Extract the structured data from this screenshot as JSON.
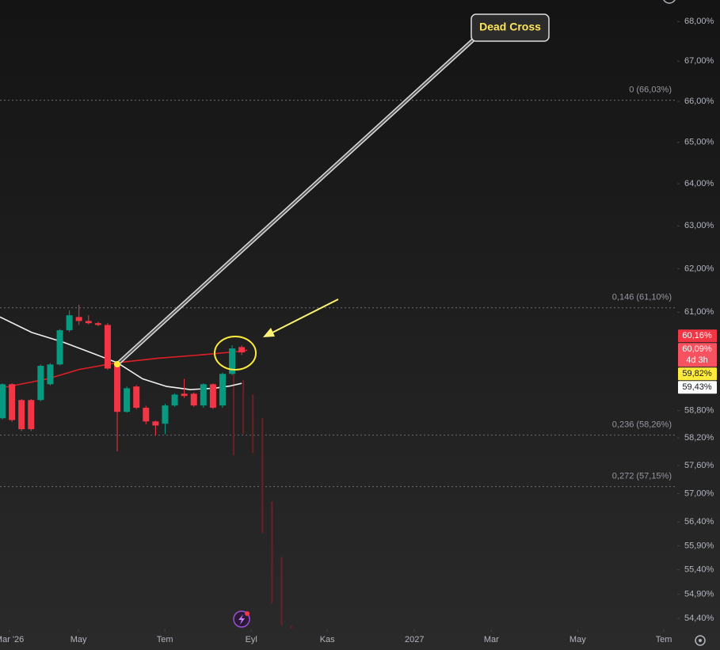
{
  "chart_data": {
    "type": "candlestick",
    "log_scale": true,
    "ylim": [
      54.18,
      68.55
    ],
    "yticks": [
      {
        "value": 68,
        "label": "68,00%"
      },
      {
        "value": 67,
        "label": "67,00%"
      },
      {
        "value": 66,
        "label": "66,00%"
      },
      {
        "value": 65,
        "label": "65,00%"
      },
      {
        "value": 64,
        "label": "64,00%"
      },
      {
        "value": 63,
        "label": "63,00%"
      },
      {
        "value": 62,
        "label": "62,00%"
      },
      {
        "value": 61,
        "label": "61,00%"
      },
      {
        "value": 58.8,
        "label": "58,80%"
      },
      {
        "value": 58.2,
        "label": "58,20%"
      },
      {
        "value": 57.6,
        "label": "57,60%"
      },
      {
        "value": 57,
        "label": "57,00%"
      },
      {
        "value": 56.4,
        "label": "56,40%"
      },
      {
        "value": 55.9,
        "label": "55,90%"
      },
      {
        "value": 55.4,
        "label": "55,40%"
      },
      {
        "value": 54.9,
        "label": "54,90%"
      },
      {
        "value": 54.4,
        "label": "54,40%"
      }
    ],
    "xlim": [
      -0.25,
      70.5
    ],
    "xticks": [
      {
        "value": 0.75,
        "label": "Mar '26"
      },
      {
        "value": 7.95,
        "label": "May"
      },
      {
        "value": 16.97,
        "label": "Tem"
      },
      {
        "value": 26.0,
        "label": "Eyl"
      },
      {
        "value": 33.94,
        "label": "Kas"
      },
      {
        "value": 43.05,
        "label": "2027"
      },
      {
        "value": 51.08,
        "label": "Mar"
      },
      {
        "value": 60.1,
        "label": "May"
      },
      {
        "value": 69.1,
        "label": "Tem"
      }
    ],
    "candles": {
      "up_color": "#089981",
      "down_color": "#f23645",
      "x": [
        0,
        1,
        2,
        3,
        4,
        5,
        6,
        7,
        8,
        9,
        10,
        11,
        12,
        13,
        14,
        15,
        16,
        17,
        18,
        19,
        20,
        21,
        22,
        23,
        24,
        25
      ],
      "open": [
        58.63,
        59.38,
        59.03,
        59.03,
        59.03,
        59.38,
        59.82,
        60.59,
        60.89,
        60.8,
        60.75,
        60.71,
        59.82,
        58.77,
        59.33,
        58.86,
        58.56,
        58.51,
        58.91,
        59.17,
        59.17,
        58.91,
        59.38,
        58.91,
        59.61,
        60.21
      ],
      "high": [
        59.4,
        59.4,
        59.05,
        59.05,
        59.82,
        59.85,
        60.62,
        61.04,
        61.17,
        60.93,
        60.78,
        60.75,
        59.85,
        59.33,
        59.36,
        58.9,
        58.58,
        58.95,
        59.18,
        59.5,
        59.2,
        59.4,
        59.4,
        59.64,
        60.25,
        60.25
      ],
      "low": [
        58.6,
        58.55,
        58.35,
        58.35,
        59.0,
        59.35,
        59.8,
        60.55,
        60.71,
        60.72,
        60.68,
        59.7,
        57.91,
        58.75,
        58.83,
        58.5,
        58.25,
        58.28,
        58.88,
        59.08,
        58.88,
        58.86,
        58.83,
        58.86,
        59.58,
        60.03
      ],
      "close": [
        59.38,
        58.59,
        58.39,
        58.39,
        59.79,
        59.82,
        60.59,
        60.93,
        60.8,
        60.75,
        60.71,
        59.73,
        58.77,
        59.29,
        58.86,
        58.56,
        58.47,
        58.91,
        59.15,
        59.12,
        58.91,
        59.38,
        58.86,
        59.61,
        60.18,
        60.09
      ]
    },
    "ghost": {
      "color": "#6e1f24",
      "x": [
        24,
        25,
        26,
        27,
        28,
        29,
        30
      ],
      "high": [
        59.64,
        59.47,
        59.15,
        58.63,
        56.84,
        55.67,
        54.26
      ],
      "low": [
        57.82,
        58.28,
        57.87,
        56.17,
        54.71,
        54.26,
        54.2
      ]
    },
    "lines": [
      {
        "color": "#f0f0f0",
        "x": [
          -0.25,
          3.06,
          6.37,
          9.69,
          12.0,
          14.65,
          17.14,
          19.62,
          22.1,
          23.76,
          25.0
        ],
        "values": [
          60.89,
          60.54,
          60.32,
          60.05,
          59.86,
          59.5,
          59.33,
          59.26,
          59.29,
          59.34,
          59.4
        ]
      },
      {
        "color": "#e01e26",
        "x": [
          -0.25,
          4.72,
          8.03,
          12.0,
          16.31,
          20.45,
          24.59,
          25.58
        ],
        "values": [
          59.29,
          59.5,
          59.71,
          59.86,
          59.96,
          60.03,
          60.11,
          60.14
        ]
      }
    ],
    "fib_levels": [
      {
        "label": "0 (66,03%)",
        "value": 66.03
      },
      {
        "label": "0,146 (61,10%)",
        "value": 61.1
      },
      {
        "label": "0,236 (58,26%)",
        "value": 58.26
      },
      {
        "label": "0,272 (57,15%)",
        "value": 57.15
      }
    ],
    "annotation": "Dead Cross",
    "price_labels": [
      {
        "value": 60.16,
        "label": "60,16%",
        "bg": "#f23645",
        "fg": "#ffffff"
      },
      {
        "value": 60.09,
        "label": "60,09%",
        "countdown": "4d 3h",
        "bg": "#f7525f",
        "fg": "#ffffff"
      },
      {
        "value": 59.82,
        "label": "59,82%",
        "bg": "#ffeb3b",
        "fg": "#131722"
      },
      {
        "value": 59.43,
        "label": "59,43%",
        "bg": "#ffffff",
        "fg": "#131722"
      }
    ]
  }
}
